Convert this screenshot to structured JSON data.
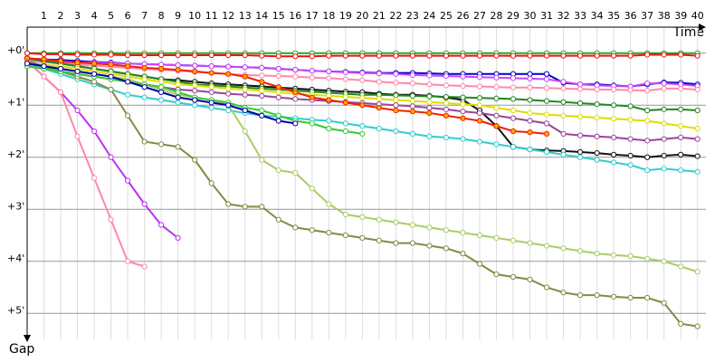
{
  "chart_data": {
    "type": "line",
    "x_label": "Time",
    "y_label": "Gap",
    "x": [
      0,
      1,
      2,
      3,
      4,
      5,
      6,
      7,
      8,
      9,
      10,
      11,
      12,
      13,
      14,
      15,
      16,
      17,
      18,
      19,
      20,
      21,
      22,
      23,
      24,
      25,
      26,
      27,
      28,
      29,
      30,
      31,
      32,
      33,
      34,
      35,
      36,
      37,
      38,
      39,
      40
    ],
    "xlim": [
      0,
      40.5
    ],
    "xticks": [
      1,
      2,
      3,
      4,
      5,
      6,
      7,
      8,
      9,
      10,
      11,
      12,
      13,
      14,
      15,
      16,
      17,
      18,
      19,
      20,
      21,
      22,
      23,
      24,
      25,
      26,
      27,
      28,
      29,
      30,
      31,
      32,
      33,
      34,
      35,
      36,
      37,
      38,
      39,
      40
    ],
    "ylim": [
      -0.5,
      5.5
    ],
    "yticks": [
      {
        "value": 0,
        "label": "+0'"
      },
      {
        "value": 1,
        "label": "+1'"
      },
      {
        "value": 2,
        "label": "+2'"
      },
      {
        "value": 3,
        "label": "+3'"
      },
      {
        "value": 4,
        "label": "+4'"
      },
      {
        "value": 5,
        "label": "+5'"
      }
    ],
    "y_inverted": true,
    "grid": true,
    "series": [
      {
        "color": "#22aa22",
        "values": [
          0,
          0,
          0,
          0,
          0,
          0,
          0,
          0,
          0,
          0,
          0,
          0,
          0,
          0,
          0,
          0,
          0,
          0,
          0,
          0,
          0,
          0,
          0,
          0,
          0,
          0,
          0,
          0,
          0,
          0,
          0,
          0,
          0,
          0,
          0,
          0,
          0,
          0,
          0,
          0,
          0
        ]
      },
      {
        "color": "#ee1111",
        "values": [
          0,
          0.02,
          0.02,
          0.03,
          0.03,
          0.03,
          0.04,
          0.04,
          0.04,
          0.04,
          0.04,
          0.04,
          0.04,
          0.04,
          0.05,
          0.06,
          0.06,
          0.06,
          0.05,
          0.05,
          0.05,
          0.05,
          0.05,
          0.05,
          0.05,
          0.05,
          0.05,
          0.05,
          0.05,
          0.05,
          0.05,
          0.05,
          0.05,
          0.05,
          0.05,
          0.05,
          0.05,
          0.03,
          0.03,
          0.03,
          0.05
        ]
      },
      {
        "color": "#0000cc",
        "values": [
          0.1,
          0.12,
          0.13,
          0.15,
          0.17,
          0.18,
          0.2,
          0.21,
          0.22,
          0.23,
          0.24,
          0.25,
          0.26,
          0.27,
          0.28,
          0.3,
          0.32,
          0.34,
          0.35,
          0.36,
          0.37,
          0.38,
          0.38,
          0.38,
          0.39,
          0.4,
          0.4,
          0.4,
          0.4,
          0.4,
          0.4,
          0.4,
          0.57,
          0.6,
          0.6,
          0.62,
          0.64,
          0.6,
          0.56,
          0.57,
          0.6
        ]
      },
      {
        "color": "#cc44ff",
        "values": [
          0.15,
          0.16,
          0.17,
          0.18,
          0.18,
          0.19,
          0.2,
          0.21,
          0.22,
          0.23,
          0.24,
          0.25,
          0.26,
          0.27,
          0.28,
          0.3,
          0.32,
          0.34,
          0.35,
          0.37,
          0.38,
          0.39,
          0.4,
          0.42,
          0.43,
          0.44,
          0.45,
          0.46,
          0.47,
          0.48,
          0.49,
          0.5,
          0.55,
          0.6,
          0.62,
          0.63,
          0.64,
          0.58,
          0.58,
          0.6,
          0.63
        ]
      },
      {
        "color": "#ff88aa",
        "values": [
          0.15,
          0.17,
          0.2,
          0.22,
          0.24,
          0.26,
          0.28,
          0.3,
          0.32,
          0.34,
          0.36,
          0.38,
          0.4,
          0.42,
          0.43,
          0.44,
          0.45,
          0.47,
          0.48,
          0.5,
          0.52,
          0.55,
          0.57,
          0.58,
          0.6,
          0.62,
          0.63,
          0.64,
          0.65,
          0.66,
          0.66,
          0.67,
          0.68,
          0.69,
          0.7,
          0.7,
          0.71,
          0.72,
          0.68,
          0.68,
          0.7
        ]
      },
      {
        "color": "#111111",
        "values": [
          0.1,
          0.15,
          0.2,
          0.25,
          0.3,
          0.35,
          0.4,
          0.45,
          0.5,
          0.52,
          0.55,
          0.58,
          0.6,
          0.62,
          0.64,
          0.66,
          0.68,
          0.7,
          0.72,
          0.74,
          0.75,
          0.78,
          0.8,
          0.8,
          0.82,
          0.85,
          0.9,
          1.1,
          1.4,
          1.8,
          1.85,
          1.87,
          1.88,
          1.9,
          1.92,
          1.95,
          1.97,
          2.0,
          1.97,
          1.95,
          1.98
        ]
      },
      {
        "color": "#228822",
        "values": [
          0.1,
          0.15,
          0.2,
          0.25,
          0.3,
          0.35,
          0.4,
          0.45,
          0.5,
          0.55,
          0.6,
          0.62,
          0.64,
          0.66,
          0.68,
          0.7,
          0.72,
          0.74,
          0.76,
          0.78,
          0.8,
          0.8,
          0.81,
          0.82,
          0.83,
          0.84,
          0.85,
          0.86,
          0.87,
          0.88,
          0.9,
          0.92,
          0.94,
          0.96,
          0.98,
          1.0,
          1.02,
          1.1,
          1.08,
          1.08,
          1.1
        ]
      },
      {
        "color": "#dddd00",
        "values": [
          0.2,
          0.22,
          0.25,
          0.3,
          0.35,
          0.4,
          0.45,
          0.5,
          0.55,
          0.6,
          0.62,
          0.65,
          0.68,
          0.7,
          0.72,
          0.75,
          0.78,
          0.8,
          0.82,
          0.84,
          0.86,
          0.88,
          0.9,
          0.92,
          0.94,
          0.96,
          0.98,
          1.0,
          1.05,
          1.1,
          1.15,
          1.18,
          1.2,
          1.22,
          1.24,
          1.26,
          1.28,
          1.3,
          1.35,
          1.4,
          1.45
        ]
      },
      {
        "color": "#994499",
        "values": [
          0.25,
          0.3,
          0.35,
          0.4,
          0.45,
          0.5,
          0.55,
          0.6,
          0.65,
          0.7,
          0.72,
          0.75,
          0.78,
          0.8,
          0.82,
          0.85,
          0.88,
          0.9,
          0.92,
          0.94,
          0.96,
          0.98,
          1.0,
          1.02,
          1.05,
          1.08,
          1.12,
          1.15,
          1.2,
          1.25,
          1.3,
          1.35,
          1.55,
          1.58,
          1.6,
          1.62,
          1.65,
          1.68,
          1.65,
          1.62,
          1.65
        ]
      },
      {
        "color": "#33cccc",
        "values": [
          0.2,
          0.3,
          0.4,
          0.5,
          0.6,
          0.7,
          0.8,
          0.85,
          0.9,
          0.95,
          1.0,
          1.05,
          1.1,
          1.15,
          1.2,
          1.22,
          1.25,
          1.28,
          1.3,
          1.35,
          1.4,
          1.45,
          1.5,
          1.55,
          1.6,
          1.62,
          1.65,
          1.7,
          1.75,
          1.8,
          1.85,
          1.9,
          1.95,
          2.0,
          2.05,
          2.1,
          2.15,
          2.25,
          2.22,
          2.25,
          2.28
        ]
      },
      {
        "color": "#aacc66",
        "values": [
          0.2,
          0.25,
          0.3,
          0.35,
          0.4,
          0.45,
          0.5,
          0.6,
          0.7,
          0.8,
          0.85,
          0.9,
          1.0,
          1.5,
          2.05,
          2.25,
          2.3,
          2.6,
          2.9,
          3.1,
          3.15,
          3.2,
          3.25,
          3.3,
          3.35,
          3.4,
          3.45,
          3.5,
          3.55,
          3.6,
          3.65,
          3.7,
          3.75,
          3.8,
          3.85,
          3.88,
          3.9,
          3.95,
          4.0,
          4.1,
          4.2
        ]
      },
      {
        "color": "#888844",
        "values": [
          0.15,
          0.25,
          0.35,
          0.45,
          0.55,
          0.7,
          1.2,
          1.7,
          1.75,
          1.8,
          2.05,
          2.5,
          2.9,
          2.95,
          2.95,
          3.2,
          3.35,
          3.4,
          3.45,
          3.5,
          3.55,
          3.6,
          3.65,
          3.65,
          3.7,
          3.75,
          3.85,
          4.05,
          4.25,
          4.3,
          4.35,
          4.5,
          4.6,
          4.65,
          4.65,
          4.68,
          4.7,
          4.7,
          4.8,
          5.2,
          5.25
        ]
      },
      {
        "color": "#bb33ee",
        "values": [
          0.15,
          0.45,
          0.75,
          1.1,
          1.5,
          2.0,
          2.45,
          2.9,
          3.3,
          3.55,
          null,
          null,
          null,
          null,
          null,
          null,
          null,
          null,
          null,
          null,
          null,
          null,
          null,
          null,
          null,
          null,
          null,
          null,
          null,
          null,
          null,
          null,
          null,
          null,
          null,
          null,
          null,
          null,
          null,
          null,
          null
        ]
      },
      {
        "color": "#ff88aa",
        "values": [
          0.15,
          0.45,
          0.75,
          1.6,
          2.4,
          3.2,
          4.0,
          4.1,
          null,
          null,
          null,
          null,
          null,
          null,
          null,
          null,
          null,
          null,
          null,
          null,
          null,
          null,
          null,
          null,
          null,
          null,
          null,
          null,
          null,
          null,
          null,
          null,
          null,
          null,
          null,
          null,
          null,
          null,
          null,
          null,
          null
        ]
      },
      {
        "color": "#33cc33",
        "values": [
          0.25,
          0.3,
          0.35,
          0.4,
          0.45,
          0.5,
          0.55,
          0.6,
          0.65,
          0.75,
          0.85,
          0.9,
          0.95,
          1.05,
          1.1,
          1.2,
          1.3,
          1.35,
          1.45,
          1.5,
          1.55,
          null,
          null,
          null,
          null,
          null,
          null,
          null,
          null,
          null,
          null,
          null,
          null,
          null,
          null,
          null,
          null,
          null,
          null,
          null,
          null
        ]
      },
      {
        "color": "#0000aa",
        "values": [
          0.2,
          0.25,
          0.3,
          0.35,
          0.4,
          0.45,
          0.55,
          0.65,
          0.75,
          0.85,
          0.9,
          0.95,
          1.0,
          1.1,
          1.2,
          1.3,
          1.35,
          null,
          null,
          null,
          null,
          null,
          null,
          null,
          null,
          null,
          null,
          null,
          null,
          null,
          null,
          null,
          null,
          null,
          null,
          null,
          null,
          null,
          null,
          null,
          null
        ]
      },
      {
        "color": "#ee2200",
        "marker_fill": "#ffaa00",
        "values": [
          0.1,
          0.12,
          0.15,
          0.18,
          0.2,
          0.22,
          0.25,
          0.28,
          0.3,
          0.32,
          0.35,
          0.38,
          0.4,
          0.45,
          0.55,
          0.65,
          0.75,
          0.85,
          0.9,
          0.95,
          1.0,
          1.05,
          1.1,
          1.12,
          1.15,
          1.2,
          1.25,
          1.3,
          1.4,
          1.5,
          1.52,
          1.55,
          null,
          null,
          null,
          null,
          null,
          null,
          null,
          null,
          null
        ]
      }
    ]
  }
}
